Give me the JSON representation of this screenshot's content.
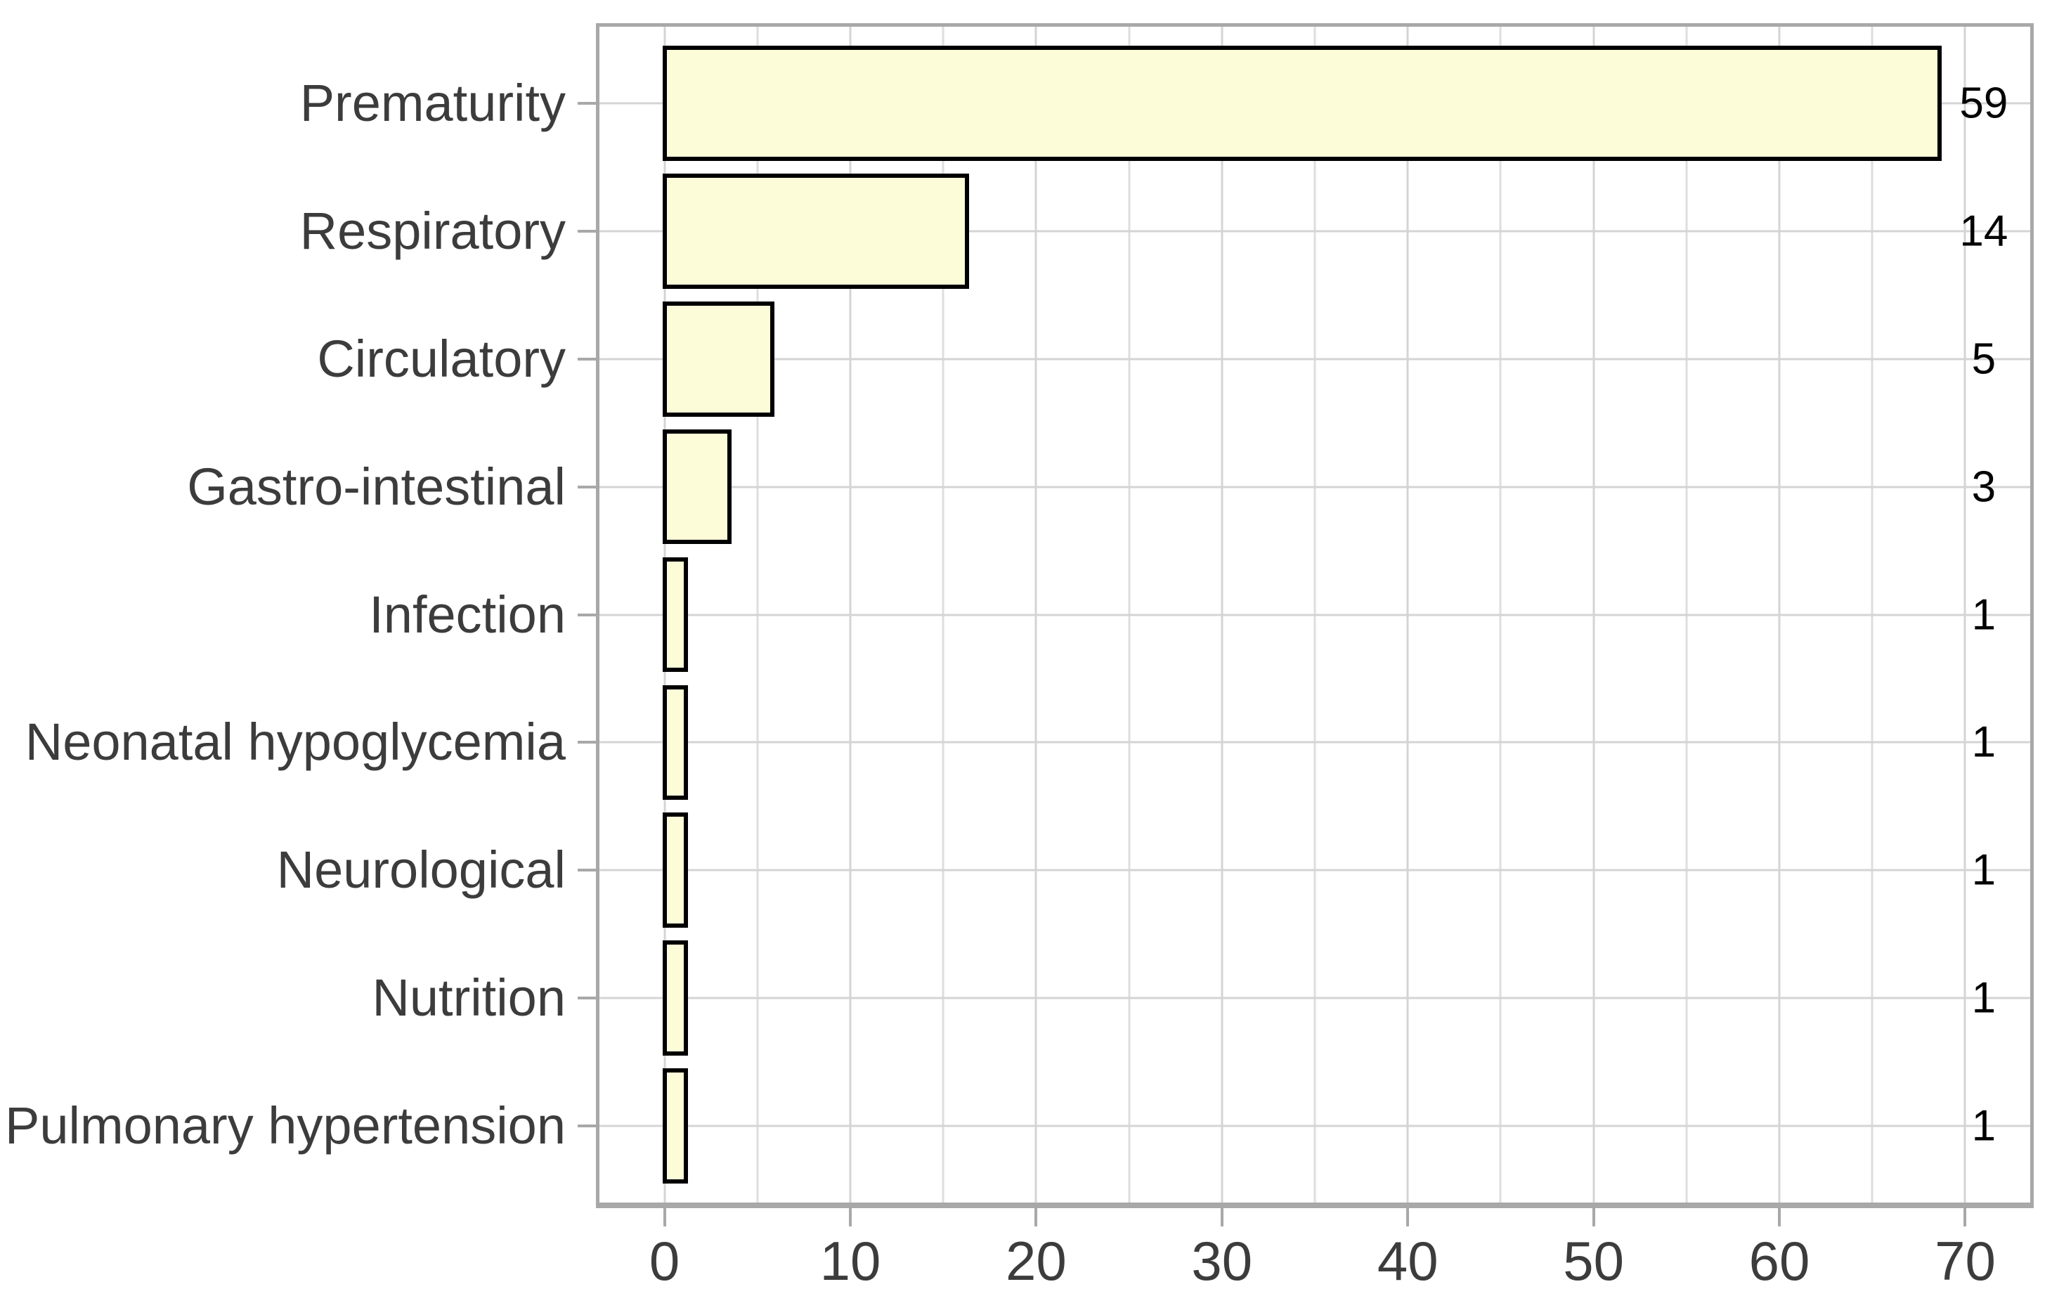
{
  "chart_data": {
    "type": "bar",
    "orientation": "horizontal",
    "title": "",
    "subtitle": "",
    "xlabel": "",
    "ylabel": "",
    "legend": "none",
    "categories": [
      "Prematurity",
      "Respiratory",
      "Circulatory",
      "Gastro-intestinal",
      "Infection",
      "Neonatal hypoglycemia",
      "Neurological",
      "Nutrition",
      "Pulmonary hypertension"
    ],
    "values": [
      59,
      14,
      5,
      3,
      1,
      1,
      1,
      1,
      1
    ],
    "value_labels": [
      "59",
      "14",
      "5",
      "3",
      "1",
      "1",
      "1",
      "1",
      "1"
    ],
    "bar_length_unit": "percent_of_total",
    "xticks": [
      0,
      10,
      20,
      30,
      40,
      50,
      60,
      70
    ],
    "xtick_labels": [
      "0",
      "10",
      "20",
      "30",
      "40",
      "50",
      "60",
      "70"
    ],
    "x_minor_ticks": [
      5,
      15,
      25,
      35,
      45,
      55,
      65
    ],
    "xlim": [
      -3.5,
      73.5
    ],
    "value_label_x": 71,
    "category_slots": 9.2,
    "bar_rel_height": 0.9,
    "grid": "x major+minor, y major at category centers",
    "colors": {
      "bar_fill": "#FCFCD9",
      "bar_border": "#000000",
      "grid_major": "#d4d4d4",
      "grid_minor": "#dedede",
      "panel_border": "#a8a8a8",
      "tick_mark": "#a8a8a8",
      "axis_text": "#3c3c3c",
      "value_text": "#000000",
      "background": "#ffffff"
    }
  }
}
